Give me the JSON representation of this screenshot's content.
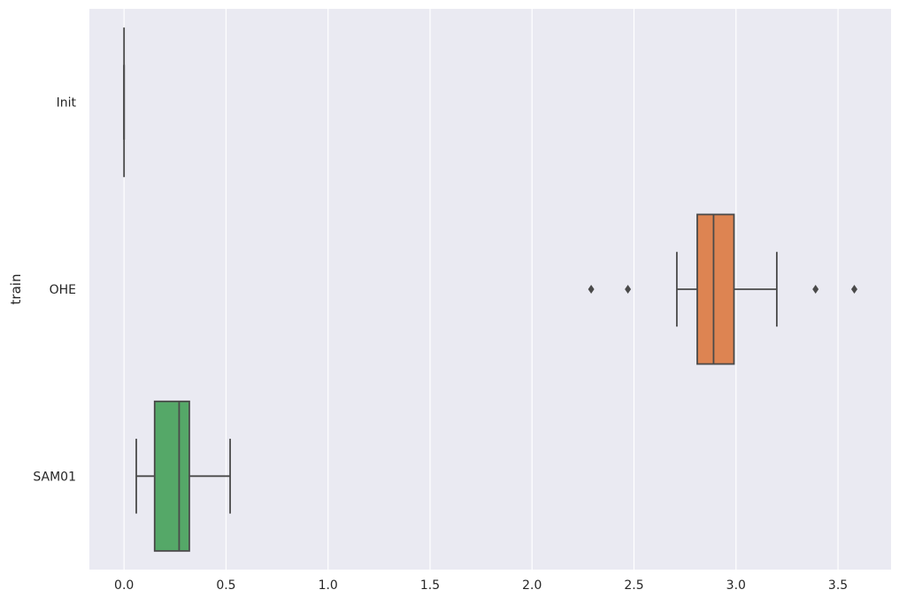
{
  "chart_data": {
    "type": "boxplot",
    "orientation": "horizontal",
    "title": "",
    "xlabel": "",
    "ylabel": "train",
    "xlim": [
      -0.17,
      3.76
    ],
    "xticks": [
      0.0,
      0.5,
      1.0,
      1.5,
      2.0,
      2.5,
      3.0,
      3.5
    ],
    "xtick_labels": [
      "0.0",
      "0.5",
      "1.0",
      "1.5",
      "2.0",
      "2.5",
      "3.0",
      "3.5"
    ],
    "grid": true,
    "colors": {
      "background": "#eaeaf2",
      "grid": "#ffffff",
      "line": "#4a4a4a",
      "text": "#262626"
    },
    "categories": [
      "Init",
      "OHE",
      "SAM01"
    ],
    "boxes": [
      {
        "category": "Init",
        "whisker_low": 0.0,
        "q1": 0.0,
        "median": 0.0,
        "q3": 0.0,
        "whisker_high": 0.0,
        "outliers": [],
        "color": "#4c72b0"
      },
      {
        "category": "OHE",
        "whisker_low": 2.71,
        "q1": 2.81,
        "median": 2.89,
        "q3": 2.99,
        "whisker_high": 3.2,
        "outliers": [
          2.29,
          2.47,
          3.39,
          3.58
        ],
        "color": "#dd8452"
      },
      {
        "category": "SAM01",
        "whisker_low": 0.06,
        "q1": 0.15,
        "median": 0.27,
        "q3": 0.32,
        "whisker_high": 0.52,
        "outliers": [],
        "color": "#55a868"
      }
    ]
  }
}
